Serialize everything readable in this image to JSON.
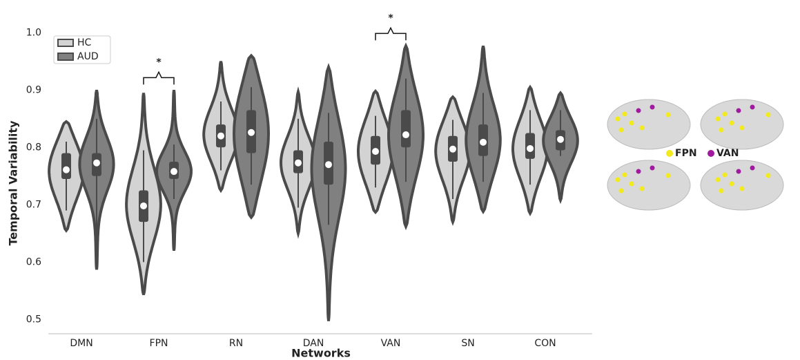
{
  "chart_data": {
    "type": "violin",
    "ylabel": "Temporal Variability",
    "xlabel": "Networks",
    "categories": [
      "DMN",
      "FPN",
      "RN",
      "DAN",
      "VAN",
      "SN",
      "CON"
    ],
    "ylim": [
      0.475,
      1.045
    ],
    "yticks": [
      0.5,
      0.6,
      0.7,
      0.8,
      0.9,
      {
        "value": 1.0,
        "label": "1.0"
      }
    ],
    "legend": "upper left",
    "series": [
      {
        "name": "HC",
        "color": "#d3d3d3",
        "min": [
          0.655,
          0.543,
          0.725,
          0.65,
          0.687,
          0.67,
          0.685
        ],
        "whisker_low": [
          0.69,
          0.6,
          0.76,
          0.695,
          0.73,
          0.71,
          0.735
        ],
        "q1": [
          0.745,
          0.67,
          0.8,
          0.755,
          0.77,
          0.775,
          0.78
        ],
        "median": [
          0.761,
          0.698,
          0.82,
          0.773,
          0.793,
          0.797,
          0.798
        ],
        "q3": [
          0.79,
          0.725,
          0.84,
          0.795,
          0.82,
          0.82,
          0.825
        ],
        "whisker_high": [
          0.81,
          0.795,
          0.88,
          0.85,
          0.855,
          0.848,
          0.865
        ],
        "max": [
          0.845,
          0.895,
          0.95,
          0.897,
          0.898,
          0.888,
          0.905
        ]
      },
      {
        "name": "AUD",
        "color": "#808080",
        "min": [
          0.587,
          0.62,
          0.678,
          0.497,
          0.662,
          0.688,
          0.708
        ],
        "whisker_low": [
          0.63,
          0.71,
          0.735,
          0.665,
          0.74,
          0.74,
          0.785
        ],
        "q1": [
          0.75,
          0.745,
          0.79,
          0.735,
          0.8,
          0.785,
          0.795
        ],
        "median": [
          0.773,
          0.758,
          0.826,
          0.77,
          0.822,
          0.809,
          0.814
        ],
        "q3": [
          0.79,
          0.775,
          0.865,
          0.81,
          0.865,
          0.84,
          0.83
        ],
        "whisker_high": [
          0.85,
          0.805,
          0.905,
          0.86,
          0.92,
          0.895,
          0.865
        ],
        "max": [
          0.9,
          0.9,
          0.96,
          0.94,
          0.977,
          0.977,
          0.895
        ]
      }
    ],
    "annotations": [
      {
        "text": "*",
        "category": "FPN"
      },
      {
        "text": "*",
        "category": "VAN"
      }
    ]
  },
  "brain_inset": {
    "labels": [
      {
        "text": "FPN",
        "color": "#f2ea1c"
      },
      {
        "text": "VAN",
        "color": "#a01aa0"
      }
    ]
  }
}
